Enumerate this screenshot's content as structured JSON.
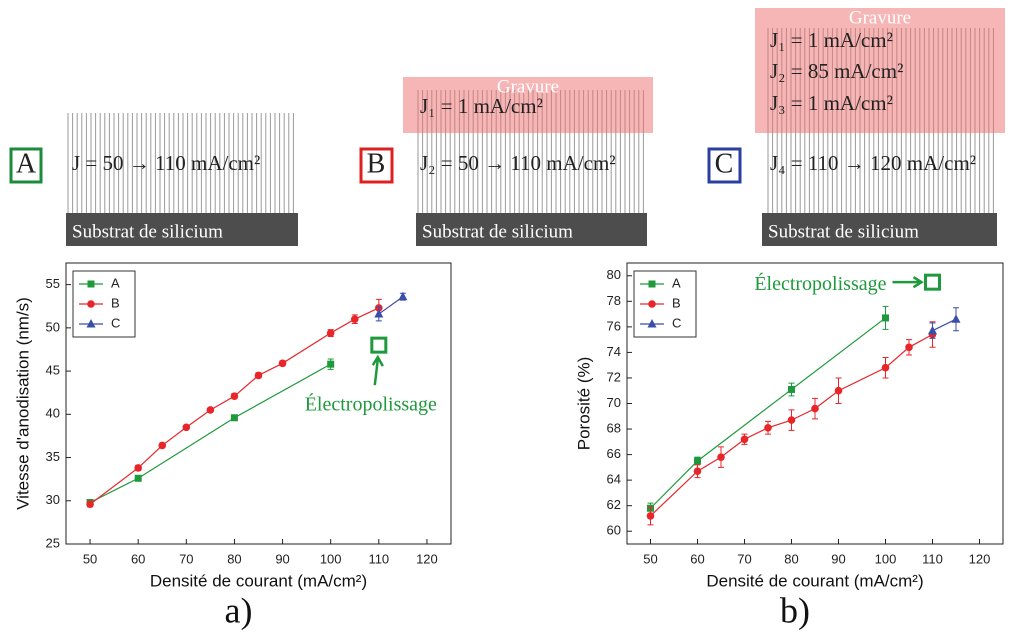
{
  "diagrams": [
    {
      "label": "A",
      "layers": [
        "J = 50 → 110 mA/cm²"
      ],
      "substrate": "Substrat de silicium"
    },
    {
      "label": "B",
      "etch": {
        "title": "Gravure",
        "layers": [
          "J₁ = 1 mA/cm²"
        ]
      },
      "layers": [
        "J₂ = 50 → 110 mA/cm²"
      ],
      "substrate": "Substrat de silicium"
    },
    {
      "label": "C",
      "etch": {
        "title": "Gravure",
        "layers": [
          "J₁ = 1 mA/cm²",
          "J₂ = 85 mA/cm²",
          "J₃ = 1 mA/cm²"
        ]
      },
      "layers": [
        "J₄ = 110 → 120 mA/cm²"
      ],
      "substrate": "Substrat de silicium"
    }
  ],
  "chart_data": [
    {
      "type": "line",
      "label": "a)",
      "xlabel": "Densité de courant (mA/cm²)",
      "ylabel": "Vitesse d'anodisation (nm/s)",
      "xlim": [
        45,
        125
      ],
      "xticks": [
        50,
        60,
        70,
        80,
        90,
        100,
        110,
        120
      ],
      "ylim": [
        25,
        57.5
      ],
      "yticks": [
        25,
        30,
        35,
        40,
        45,
        50,
        55
      ],
      "legend": "top-left",
      "series": [
        {
          "name": "A",
          "color": "#1e9a3c",
          "marker": "square",
          "x": [
            50,
            60,
            80,
            100
          ],
          "values": [
            29.8,
            32.6,
            39.6,
            45.8
          ],
          "errors": [
            0.3,
            0.3,
            0.3,
            0.6
          ]
        },
        {
          "name": "B",
          "color": "#e8262a",
          "marker": "circle",
          "x": [
            50,
            60,
            65,
            70,
            75,
            80,
            85,
            90,
            100,
            105,
            110
          ],
          "values": [
            29.6,
            33.8,
            36.4,
            38.5,
            40.5,
            42.1,
            44.5,
            45.9,
            49.4,
            51.0,
            52.3
          ],
          "errors": [
            0.3,
            0.3,
            0.2,
            0.2,
            0.2,
            0.3,
            0.3,
            0.3,
            0.4,
            0.5,
            1.0
          ]
        },
        {
          "name": "C",
          "color": "#3a4fa8",
          "marker": "triangle",
          "x": [
            110,
            115
          ],
          "values": [
            51.6,
            53.6
          ],
          "errors": [
            0.8,
            0.4
          ]
        }
      ],
      "annotation": {
        "text": "Électropolissage",
        "x": 110,
        "y": 48,
        "color": "#1e9a3c"
      }
    },
    {
      "type": "line",
      "label": "b)",
      "xlabel": "Densité de courant (mA/cm²)",
      "ylabel": "Porosité (%)",
      "xlim": [
        45,
        125
      ],
      "xticks": [
        50,
        60,
        70,
        80,
        90,
        100,
        110,
        120
      ],
      "ylim": [
        59,
        81
      ],
      "yticks": [
        60,
        62,
        64,
        66,
        68,
        70,
        72,
        74,
        76,
        78,
        80
      ],
      "legend": "top-left",
      "series": [
        {
          "name": "A",
          "color": "#1e9a3c",
          "marker": "square",
          "x": [
            50,
            60,
            80,
            100
          ],
          "values": [
            61.8,
            65.5,
            71.1,
            76.7
          ],
          "errors": [
            0.4,
            0.3,
            0.5,
            0.9
          ]
        },
        {
          "name": "B",
          "color": "#e8262a",
          "marker": "circle",
          "x": [
            50,
            60,
            65,
            70,
            75,
            80,
            85,
            90,
            100,
            105,
            110
          ],
          "values": [
            61.2,
            64.7,
            65.8,
            67.2,
            68.1,
            68.7,
            69.6,
            71.0,
            72.8,
            74.4,
            75.4
          ],
          "errors": [
            0.7,
            0.5,
            0.8,
            0.4,
            0.5,
            0.8,
            0.8,
            1.0,
            0.8,
            0.6,
            1.0
          ]
        },
        {
          "name": "C",
          "color": "#3a4fa8",
          "marker": "triangle",
          "x": [
            110,
            115
          ],
          "values": [
            75.7,
            76.6
          ],
          "errors": [
            0.6,
            0.9
          ]
        }
      ],
      "annotation": {
        "text": "Électropolissage",
        "x": 110,
        "y": 79.5,
        "color": "#1e9a3c"
      }
    }
  ]
}
